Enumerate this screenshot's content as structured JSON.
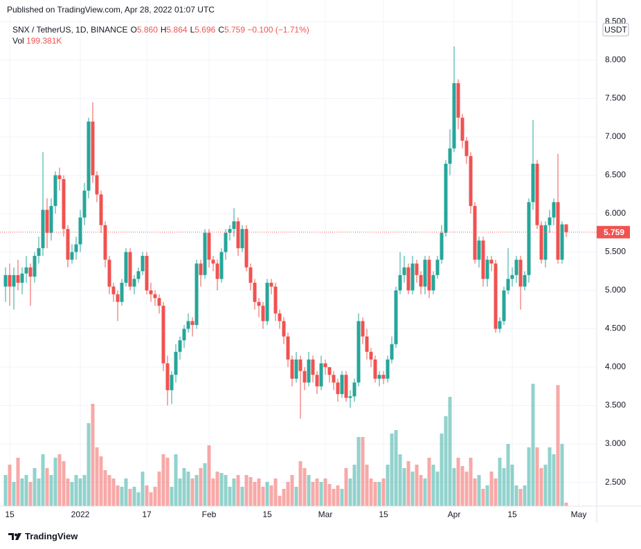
{
  "header": {
    "published": "Published on TradingView.com, Apr 28, 2022 01:07 UTC",
    "symbol": "SNX / TetherUS, 1D, BINANCE",
    "fields": [
      {
        "key": "O",
        "value": "5.860"
      },
      {
        "key": "H",
        "value": "5.864"
      },
      {
        "key": "L",
        "value": "5.696"
      },
      {
        "key": "C",
        "value": "5.759"
      }
    ],
    "change": "−0.100 (−1.71%)",
    "volume_key": "Vol",
    "volume_value": "199.381K",
    "currency": "USDT",
    "last_price": "5.759"
  },
  "footer": "TradingView",
  "chart_data": {
    "type": "candlestick",
    "up_color": "#26a69a",
    "down_color": "#ef5350",
    "grid": true,
    "price_line": true,
    "xlim": [
      0,
      142
    ],
    "xticks": [
      {
        "value": 1,
        "label": "15"
      },
      {
        "value": 18,
        "label": "2022"
      },
      {
        "value": 34,
        "label": "17"
      },
      {
        "value": 49,
        "label": "Feb"
      },
      {
        "value": 63,
        "label": "15"
      },
      {
        "value": 77,
        "label": "Mar"
      },
      {
        "value": 91,
        "label": "15"
      },
      {
        "value": 108,
        "label": "Apr"
      },
      {
        "value": 122,
        "label": "15"
      },
      {
        "value": 138,
        "label": "May"
      }
    ],
    "ylim": [
      2.19,
      8.585
    ],
    "yticks": [
      {
        "value": 2.5,
        "label": "2.500"
      },
      {
        "value": 3,
        "label": "3.000"
      },
      {
        "value": 3.5,
        "label": "3.500"
      },
      {
        "value": 4,
        "label": "4.000"
      },
      {
        "value": 4.5,
        "label": "4.500"
      },
      {
        "value": 5,
        "label": "5.000"
      },
      {
        "value": 5.5,
        "label": "5.500"
      },
      {
        "value": 6,
        "label": "6.000"
      },
      {
        "value": 6.5,
        "label": "6.500"
      },
      {
        "value": 7,
        "label": "7.000"
      },
      {
        "value": 7.5,
        "label": "7.500"
      },
      {
        "value": 8,
        "label": "8.000"
      },
      {
        "value": 8.5,
        "label": "8.500"
      }
    ],
    "open": [
      5.05,
      5.2,
      5.05,
      5.2,
      5.1,
      5.22,
      5.3,
      5.18,
      5.45,
      5.55,
      6.05,
      5.75,
      6.1,
      6.5,
      6.45,
      5.8,
      5.4,
      5.5,
      5.6,
      5.95,
      6.3,
      7.2,
      6.5,
      6.25,
      5.85,
      5.4,
      5.05,
      4.95,
      4.85,
      5.1,
      5.5,
      5.05,
      5.15,
      5.25,
      5.45,
      5.0,
      4.95,
      4.9,
      4.8,
      4.05,
      3.7,
      3.9,
      4.2,
      4.35,
      4.5,
      4.6,
      4.55,
      5.35,
      5.2,
      5.75,
      5.4,
      5.35,
      5.15,
      5.5,
      5.75,
      5.8,
      5.9,
      5.55,
      5.8,
      5.3,
      5.1,
      4.85,
      4.8,
      4.6,
      5.1,
      5.05,
      4.7,
      4.6,
      4.4,
      4.1,
      3.85,
      4.1,
      3.95,
      3.8,
      4.1,
      3.9,
      3.75,
      4.05,
      4.0,
      3.9,
      3.8,
      3.65,
      3.9,
      3.6,
      3.62,
      3.8,
      4.6,
      4.4,
      4.2,
      4.1,
      3.85,
      3.9,
      3.85,
      4.1,
      4.3,
      5.0,
      5.2,
      5.3,
      5.0,
      5.35,
      5.2,
      5.05,
      5.4,
      5.0,
      5.2,
      5.4,
      5.75,
      6.65,
      6.85,
      7.7,
      7.25,
      6.95,
      6.75,
      6.1,
      5.4,
      5.65,
      5.15,
      5.4,
      5.35,
      4.5,
      4.6,
      5.0,
      5.15,
      5.2,
      5.4,
      5.05,
      5.2,
      6.15,
      6.65,
      5.85,
      5.4,
      5.85,
      5.95,
      6.15,
      5.4,
      5.86
    ],
    "high": [
      5.3,
      5.35,
      5.3,
      5.4,
      5.3,
      5.45,
      5.35,
      5.5,
      5.7,
      6.8,
      6.2,
      6.2,
      6.55,
      6.6,
      6.5,
      5.85,
      5.6,
      5.7,
      6.05,
      6.4,
      7.25,
      7.45,
      6.55,
      6.3,
      5.9,
      5.45,
      5.1,
      5.0,
      5.15,
      5.55,
      5.55,
      5.2,
      5.3,
      5.5,
      5.5,
      5.1,
      5.0,
      4.95,
      4.85,
      4.15,
      3.95,
      4.3,
      4.4,
      4.55,
      4.7,
      4.65,
      5.4,
      5.4,
      5.8,
      5.8,
      5.45,
      5.4,
      5.55,
      5.8,
      5.85,
      6.07,
      5.95,
      5.85,
      5.85,
      5.35,
      5.15,
      4.9,
      4.85,
      5.15,
      5.15,
      5.1,
      4.75,
      4.65,
      4.45,
      4.15,
      4.2,
      4.15,
      4.0,
      4.2,
      4.15,
      3.95,
      4.15,
      4.1,
      4.0,
      3.95,
      3.85,
      3.95,
      3.95,
      3.7,
      3.85,
      4.7,
      4.65,
      4.5,
      4.25,
      4.15,
      3.95,
      3.95,
      4.15,
      4.4,
      5.05,
      5.5,
      5.45,
      5.35,
      5.45,
      5.4,
      5.25,
      5.45,
      5.45,
      5.25,
      5.45,
      5.85,
      6.7,
      7.1,
      8.18,
      7.75,
      7.3,
      7.0,
      6.8,
      6.15,
      5.7,
      5.7,
      5.45,
      5.45,
      5.4,
      4.65,
      5.05,
      5.55,
      5.3,
      5.45,
      5.45,
      5.25,
      6.2,
      7.22,
      6.7,
      5.9,
      5.9,
      6.05,
      6.2,
      6.78,
      5.9,
      5.864
    ],
    "low": [
      4.85,
      4.8,
      4.75,
      5.0,
      4.95,
      5.1,
      4.8,
      5.1,
      5.35,
      5.45,
      5.55,
      5.65,
      6.0,
      6.3,
      5.7,
      5.3,
      5.35,
      5.4,
      5.5,
      5.85,
      6.2,
      6.4,
      6.15,
      5.75,
      5.3,
      4.95,
      4.85,
      4.6,
      4.8,
      5.05,
      5.0,
      4.95,
      5.1,
      5.2,
      4.95,
      4.85,
      4.8,
      4.7,
      3.95,
      3.5,
      3.52,
      3.8,
      4.1,
      4.25,
      4.45,
      4.4,
      4.5,
      5.05,
      5.15,
      5.3,
      5.25,
      5.0,
      5.1,
      5.4,
      5.65,
      5.7,
      5.45,
      5.5,
      5.25,
      5.0,
      4.75,
      4.65,
      4.5,
      4.55,
      4.95,
      4.6,
      4.5,
      4.3,
      4.0,
      3.75,
      3.8,
      3.33,
      3.7,
      3.75,
      3.8,
      3.65,
      3.7,
      3.9,
      3.8,
      3.7,
      3.55,
      3.6,
      3.55,
      3.47,
      3.55,
      3.75,
      4.3,
      4.1,
      4.0,
      3.8,
      3.75,
      3.78,
      3.8,
      4.05,
      4.25,
      4.95,
      5.1,
      4.95,
      4.95,
      5.1,
      4.95,
      4.95,
      4.9,
      4.95,
      5.15,
      5.35,
      5.7,
      6.5,
      6.8,
      7.1,
      6.85,
      6.65,
      6.0,
      5.35,
      5.3,
      5.05,
      5.05,
      5.25,
      4.45,
      4.45,
      4.55,
      4.95,
      5.05,
      5.1,
      4.75,
      5.0,
      5.1,
      6.05,
      5.8,
      5.35,
      5.3,
      5.75,
      5.85,
      5.35,
      5.35,
      5.696
    ],
    "close": [
      5.2,
      5.05,
      5.2,
      5.1,
      5.22,
      5.3,
      5.18,
      5.45,
      5.55,
      6.05,
      5.75,
      6.1,
      6.5,
      6.45,
      5.8,
      5.4,
      5.5,
      5.6,
      5.95,
      6.3,
      7.2,
      6.5,
      6.25,
      5.85,
      5.4,
      5.05,
      4.95,
      4.85,
      5.1,
      5.5,
      5.05,
      5.15,
      5.25,
      5.45,
      5.0,
      4.95,
      4.9,
      4.8,
      4.05,
      3.7,
      3.9,
      4.2,
      4.35,
      4.5,
      4.6,
      4.55,
      5.35,
      5.2,
      5.75,
      5.4,
      5.35,
      5.15,
      5.5,
      5.75,
      5.8,
      5.9,
      5.55,
      5.8,
      5.3,
      5.1,
      4.85,
      4.8,
      4.6,
      5.1,
      5.05,
      4.7,
      4.6,
      4.4,
      4.1,
      3.85,
      4.1,
      3.95,
      3.8,
      4.1,
      3.9,
      3.75,
      4.05,
      4.0,
      3.9,
      3.8,
      3.65,
      3.9,
      3.6,
      3.62,
      3.8,
      4.6,
      4.4,
      4.2,
      4.1,
      3.85,
      3.9,
      3.85,
      4.1,
      4.3,
      5.0,
      5.2,
      5.3,
      5.0,
      5.35,
      5.2,
      5.05,
      5.4,
      5.0,
      5.2,
      5.4,
      5.75,
      6.65,
      6.85,
      7.7,
      7.25,
      6.95,
      6.75,
      6.1,
      5.4,
      5.65,
      5.15,
      5.4,
      5.35,
      4.5,
      4.6,
      5.0,
      5.15,
      5.2,
      5.4,
      5.05,
      5.2,
      6.15,
      6.65,
      5.85,
      5.4,
      5.85,
      5.95,
      6.15,
      5.4,
      5.86,
      5.759
    ],
    "volume": [
      1800000,
      2400000,
      1400000,
      2800000,
      1600000,
      1800000,
      1400000,
      2200000,
      1600000,
      3000000,
      2200000,
      1800000,
      2800000,
      3000000,
      2600000,
      1600000,
      1400000,
      1800000,
      1600000,
      1800000,
      4800000,
      5920000,
      3400000,
      2880000,
      2080000,
      1800000,
      1600000,
      1200000,
      1120000,
      1600000,
      1000000,
      1120000,
      800000,
      2000000,
      1200000,
      800000,
      1120000,
      2000000,
      3000000,
      2800000,
      1120000,
      3000000,
      1600000,
      2200000,
      2000000,
      1600000,
      1800000,
      2200000,
      2480000,
      3520000,
      1600000,
      2000000,
      1920000,
      1800000,
      1120000,
      1600000,
      1800000,
      1120000,
      1800000,
      1680000,
      1400000,
      1600000,
      1120000,
      1400000,
      1200000,
      1600000,
      600000,
      1000000,
      1400000,
      1800000,
      1120000,
      2600000,
      2200000,
      1800000,
      1400000,
      1600000,
      1400000,
      1600000,
      1280000,
      1000000,
      1200000,
      1000000,
      2200000,
      1600000,
      2400000,
      4000000,
      4000000,
      2400000,
      1600000,
      1400000,
      1400000,
      1600000,
      2400000,
      4200000,
      4400000,
      3000000,
      2200000,
      2600000,
      2000000,
      2400000,
      1800000,
      1600000,
      2800000,
      2400000,
      2000000,
      4200000,
      5200000,
      6320000,
      2200000,
      2800000,
      2320000,
      2000000,
      2800000,
      1600000,
      1800000,
      1000000,
      1200000,
      2000000,
      1600000,
      2800000,
      2200000,
      3600000,
      2400000,
      1200000,
      1000000,
      1200000,
      3400000,
      7080000,
      3400000,
      2200000,
      2400000,
      3400000,
      3000000,
      7000000,
      3600000,
      199381
    ]
  }
}
